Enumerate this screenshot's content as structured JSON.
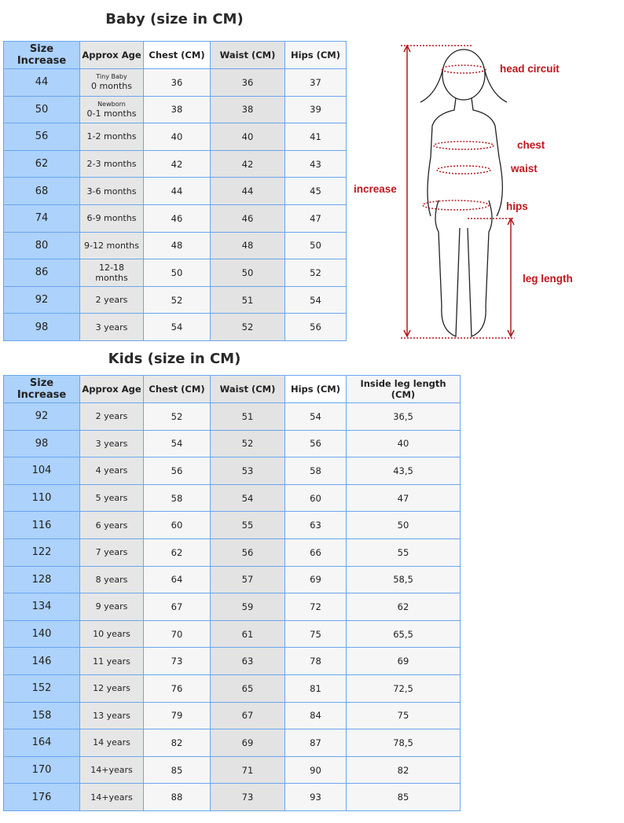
{
  "baby": {
    "title": "Baby (size in CM)",
    "headers": [
      "Size Increase",
      "Approx Age",
      "Chest (CM)",
      "Waist (CM)",
      "Hips (CM)"
    ],
    "rows": [
      {
        "size": "44",
        "age_note": "Tiny Baby",
        "age": "0 months",
        "chest": "36",
        "waist": "36",
        "hips": "37"
      },
      {
        "size": "50",
        "age_note": "Newborn",
        "age": "0-1 months",
        "chest": "38",
        "waist": "38",
        "hips": "39"
      },
      {
        "size": "56",
        "age": "1-2 months",
        "chest": "40",
        "waist": "40",
        "hips": "41"
      },
      {
        "size": "62",
        "age": "2-3 months",
        "chest": "42",
        "waist": "42",
        "hips": "43"
      },
      {
        "size": "68",
        "age": "3-6 months",
        "chest": "44",
        "waist": "44",
        "hips": "45"
      },
      {
        "size": "74",
        "age": "6-9 months",
        "chest": "46",
        "waist": "46",
        "hips": "47"
      },
      {
        "size": "80",
        "age": "9-12 months",
        "chest": "48",
        "waist": "48",
        "hips": "50"
      },
      {
        "size": "86",
        "age": "12-18 months",
        "chest": "50",
        "waist": "50",
        "hips": "52"
      },
      {
        "size": "92",
        "age": "2 years",
        "chest": "52",
        "waist": "51",
        "hips": "54"
      },
      {
        "size": "98",
        "age": "3 years",
        "chest": "54",
        "waist": "52",
        "hips": "56"
      }
    ]
  },
  "kids": {
    "title": "Kids (size in CM)",
    "headers": [
      "Size Increase",
      "Approx Age",
      "Chest (CM)",
      "Waist (CM)",
      "Hips (CM)",
      "Inside leg length (CM)"
    ],
    "rows": [
      {
        "size": "92",
        "age": "2 years",
        "chest": "52",
        "waist": "51",
        "hips": "54",
        "leg": "36,5"
      },
      {
        "size": "98",
        "age": "3 years",
        "chest": "54",
        "waist": "52",
        "hips": "56",
        "leg": "40"
      },
      {
        "size": "104",
        "age": "4 years",
        "chest": "56",
        "waist": "53",
        "hips": "58",
        "leg": "43,5"
      },
      {
        "size": "110",
        "age": "5 years",
        "chest": "58",
        "waist": "54",
        "hips": "60",
        "leg": "47"
      },
      {
        "size": "116",
        "age": "6 years",
        "chest": "60",
        "waist": "55",
        "hips": "63",
        "leg": "50"
      },
      {
        "size": "122",
        "age": "7 years",
        "chest": "62",
        "waist": "56",
        "hips": "66",
        "leg": "55"
      },
      {
        "size": "128",
        "age": "8 years",
        "chest": "64",
        "waist": "57",
        "hips": "69",
        "leg": "58,5"
      },
      {
        "size": "134",
        "age": "9 years",
        "chest": "67",
        "waist": "59",
        "hips": "72",
        "leg": "62"
      },
      {
        "size": "140",
        "age": "10 years",
        "chest": "70",
        "waist": "61",
        "hips": "75",
        "leg": "65,5"
      },
      {
        "size": "146",
        "age": "11 years",
        "chest": "73",
        "waist": "63",
        "hips": "78",
        "leg": "69"
      },
      {
        "size": "152",
        "age": "12 years",
        "chest": "76",
        "waist": "65",
        "hips": "81",
        "leg": "72,5"
      },
      {
        "size": "158",
        "age": "13 years",
        "chest": "79",
        "waist": "67",
        "hips": "84",
        "leg": "75"
      },
      {
        "size": "164",
        "age": "14 years",
        "chest": "82",
        "waist": "69",
        "hips": "87",
        "leg": "78,5"
      },
      {
        "size": "170",
        "age": "14+years",
        "chest": "85",
        "waist": "71",
        "hips": "90",
        "leg": "82"
      },
      {
        "size": "176",
        "age": "14+years",
        "chest": "88",
        "waist": "73",
        "hips": "93",
        "leg": "85"
      }
    ]
  },
  "figure": {
    "labels": {
      "head": "head circuit",
      "chest": "chest",
      "waist": "waist",
      "hips": "hips",
      "increase": "increase",
      "leg": "leg length"
    }
  },
  "colors": {
    "accent_red": "#c0171d",
    "border_blue": "#6aa6ee",
    "size_col": "#add2fb"
  }
}
